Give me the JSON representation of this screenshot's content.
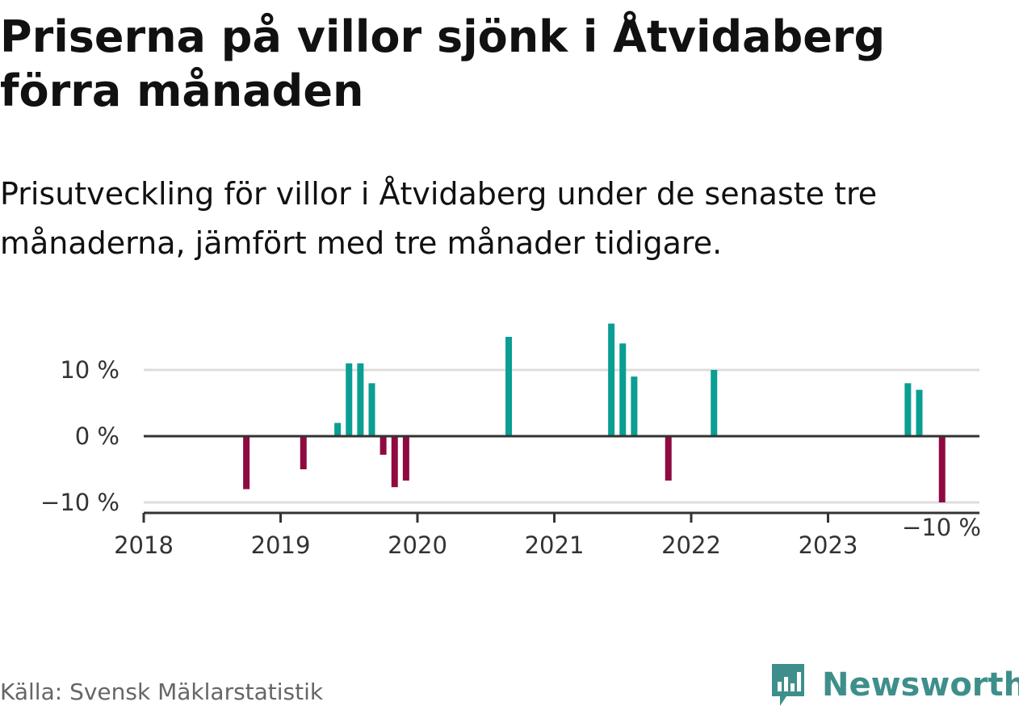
{
  "title": "Priserna på villor sjönk i Åtvidaberg förra månaden",
  "subtitle": "Prisutveckling för villor i Åtvidaberg under de senaste tre månaderna, jämfört med tre månader tidigare.",
  "source": "Källa: Svensk Mäklarstatistik",
  "brand": {
    "name": "Newsworthy",
    "icon": "newsworthy-logo-icon"
  },
  "colors": {
    "positive": "#0a9e94",
    "negative": "#8f0a40",
    "axis": "#333333",
    "grid": "#dddddd"
  },
  "chart_data": {
    "type": "bar",
    "xlim": [
      "2018-01",
      "2023-12"
    ],
    "ylim": [
      -11,
      17
    ],
    "x_ticks": [
      "2018",
      "2019",
      "2020",
      "2021",
      "2022",
      "2023"
    ],
    "y_ticks": [
      {
        "value": 10,
        "label": "10 %"
      },
      {
        "value": 0,
        "label": "0 %"
      },
      {
        "value": -10,
        "label": "−10 %"
      }
    ],
    "grid": true,
    "annotation": {
      "date": "2023-11",
      "label": "−10 %"
    },
    "series": [
      {
        "points": [
          {
            "date": "2018-10",
            "value": -8
          },
          {
            "date": "2019-03",
            "value": -5
          },
          {
            "date": "2019-06",
            "value": 2
          },
          {
            "date": "2019-07",
            "value": 11
          },
          {
            "date": "2019-08",
            "value": 11
          },
          {
            "date": "2019-09",
            "value": 8
          },
          {
            "date": "2019-10",
            "value": -2.8
          },
          {
            "date": "2019-11",
            "value": -7.7
          },
          {
            "date": "2019-12",
            "value": -6.7
          },
          {
            "date": "2020-09",
            "value": 15
          },
          {
            "date": "2021-06",
            "value": 17
          },
          {
            "date": "2021-07",
            "value": 14
          },
          {
            "date": "2021-08",
            "value": 9
          },
          {
            "date": "2021-11",
            "value": -6.7
          },
          {
            "date": "2022-03",
            "value": 10
          },
          {
            "date": "2023-08",
            "value": 8
          },
          {
            "date": "2023-09",
            "value": 7
          },
          {
            "date": "2023-11",
            "value": -10
          }
        ]
      }
    ]
  }
}
